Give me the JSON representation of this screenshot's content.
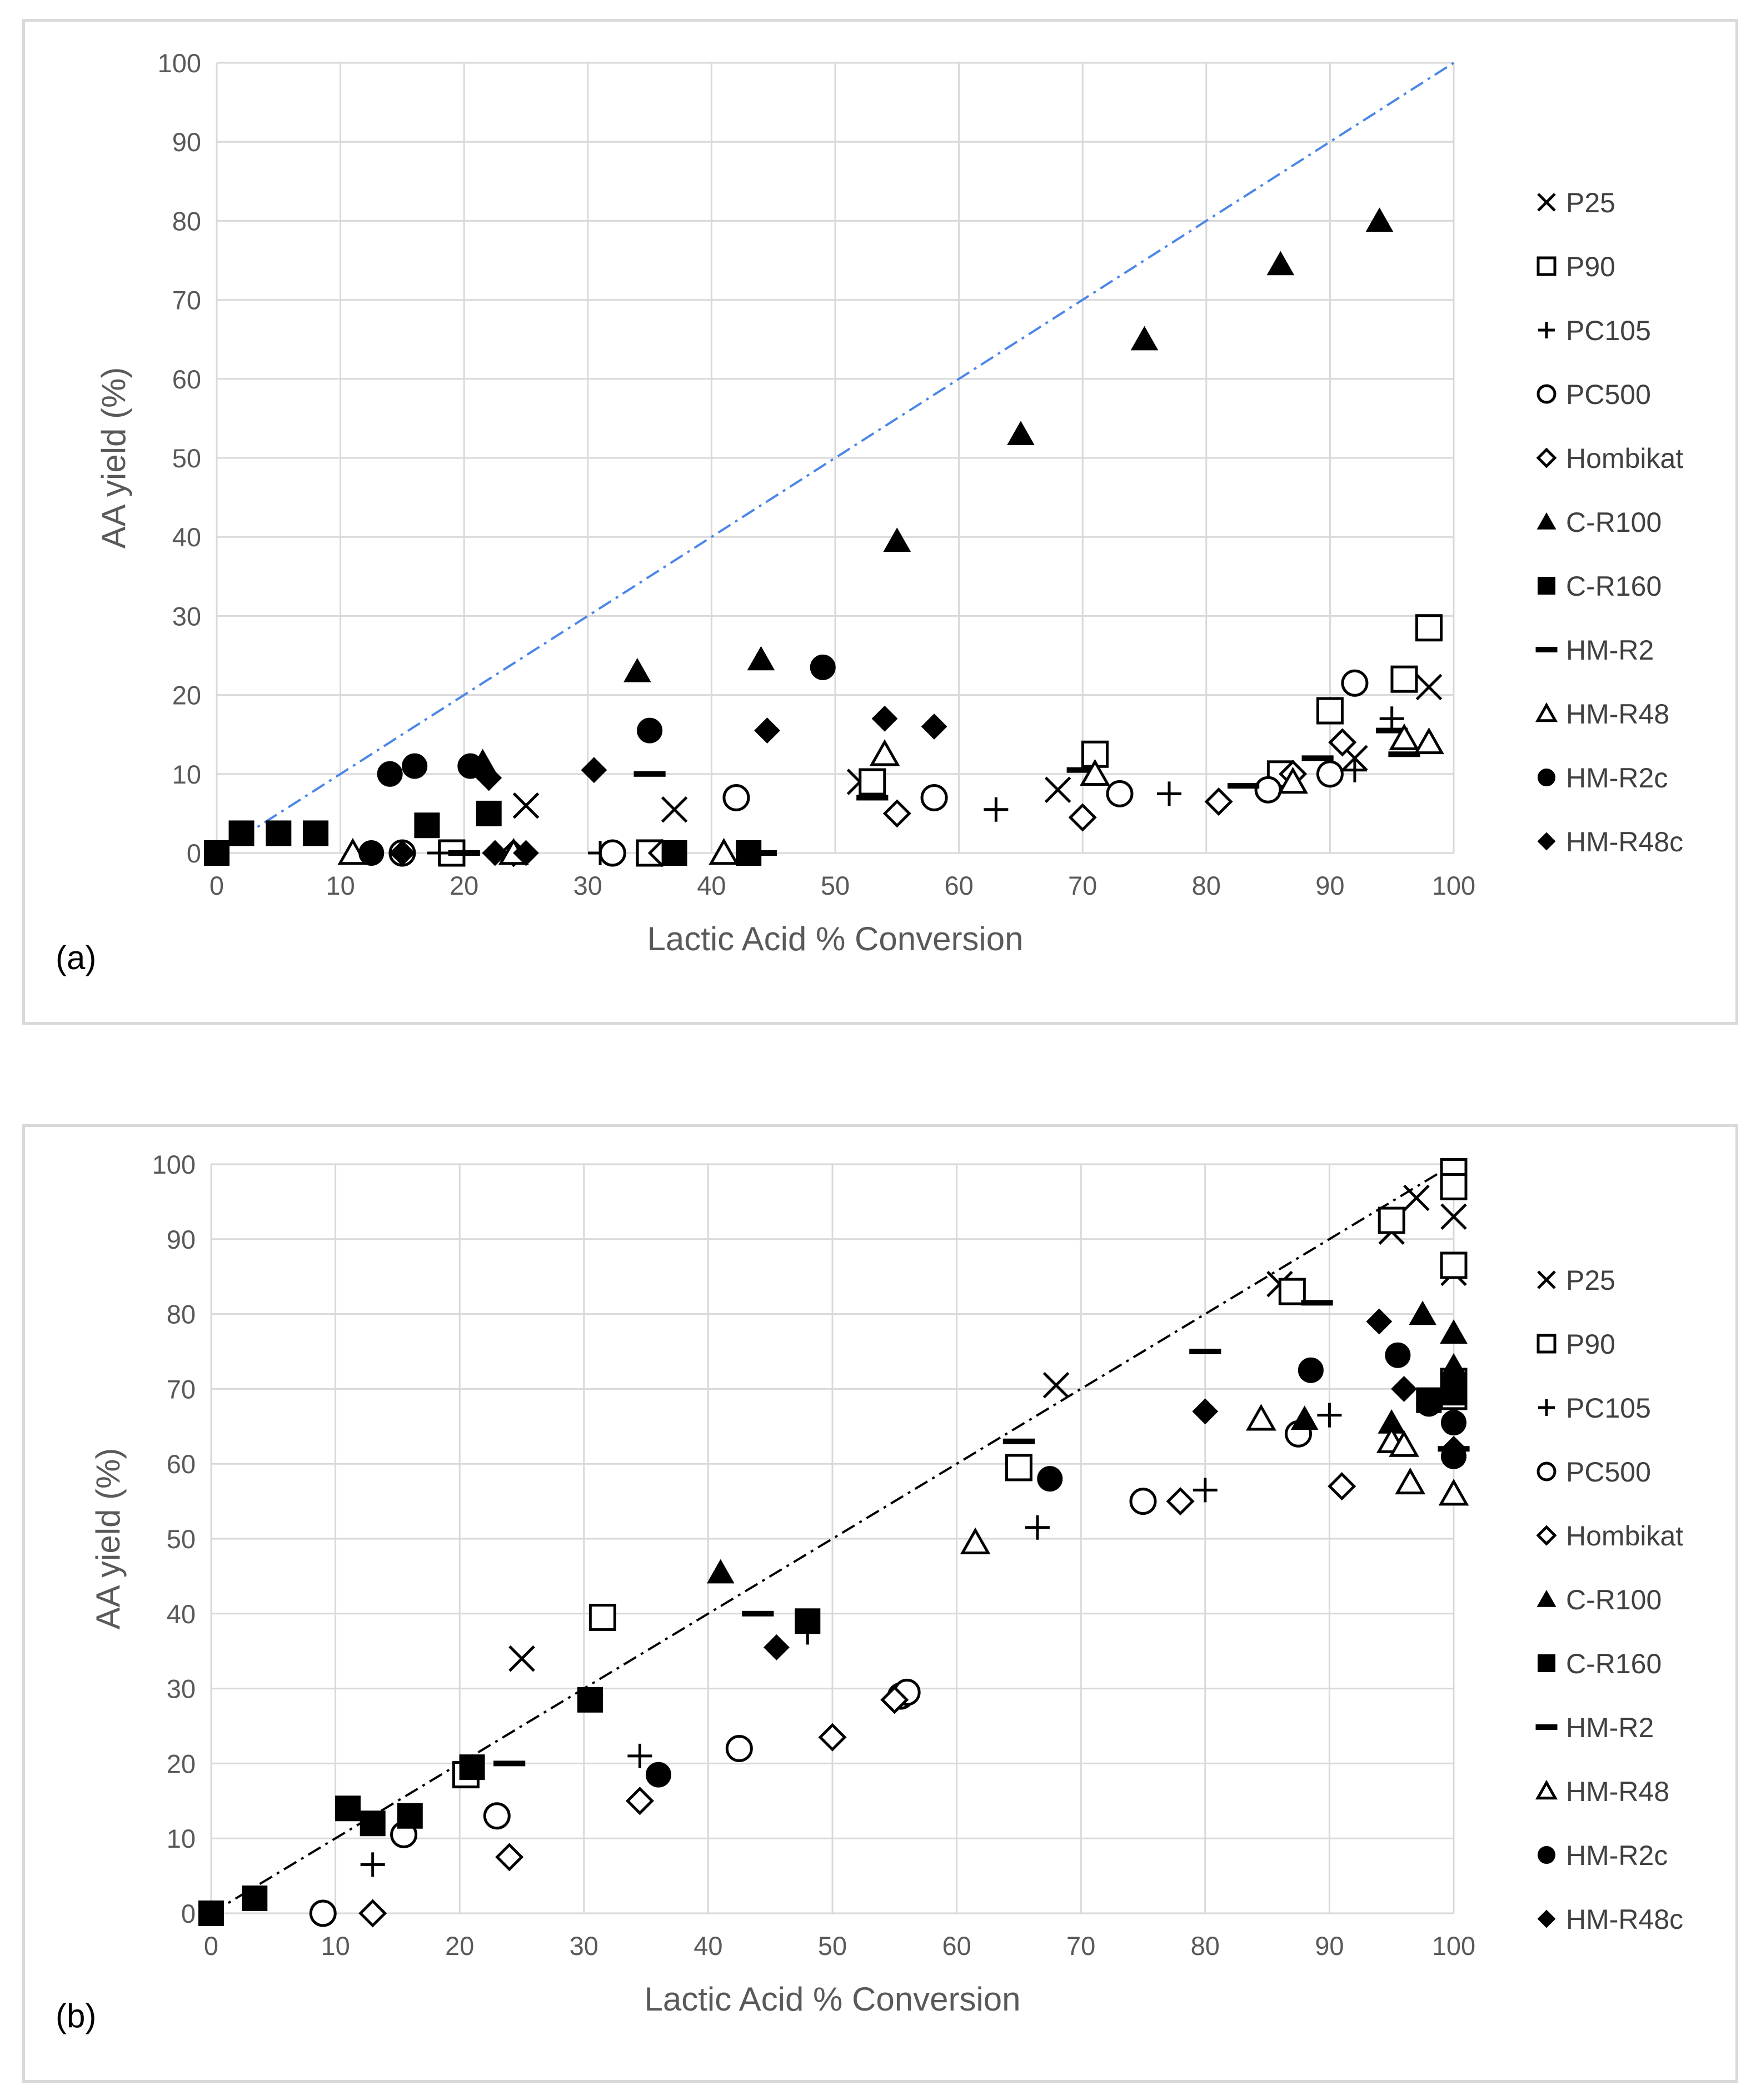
{
  "chart_data": [
    {
      "type": "scatter",
      "panel_label": "(a)",
      "title": "",
      "xlabel": "Lactic Acid % Conversion",
      "ylabel": "AA yield (%)",
      "xlim": [
        0,
        100
      ],
      "ylim": [
        0,
        100
      ],
      "xticks": [
        0,
        10,
        20,
        30,
        40,
        50,
        60,
        70,
        80,
        90,
        100
      ],
      "yticks": [
        0,
        10,
        20,
        30,
        40,
        50,
        60,
        70,
        80,
        90,
        100
      ],
      "grid": true,
      "legend_position": "right",
      "reference_line": {
        "points": [
          [
            0,
            0
          ],
          [
            100,
            100
          ]
        ],
        "color": "#4a86e8",
        "style": "dash-dot"
      },
      "series": [
        {
          "name": "P25",
          "marker": "x",
          "points": [
            [
              25,
              6
            ],
            [
              37,
              5.5
            ],
            [
              52,
              9
            ],
            [
              68,
              8
            ],
            [
              92,
              12
            ],
            [
              98,
              21
            ]
          ]
        },
        {
          "name": "P90",
          "marker": "square-open",
          "points": [
            [
              19,
              0
            ],
            [
              35,
              0
            ],
            [
              53,
              9
            ],
            [
              71,
              12.5
            ],
            [
              86,
              10
            ],
            [
              90,
              18
            ],
            [
              96,
              22
            ],
            [
              98,
              28.5
            ]
          ]
        },
        {
          "name": "PC105",
          "marker": "plus",
          "points": [
            [
              18,
              0
            ],
            [
              31,
              0
            ],
            [
              63,
              5.5
            ],
            [
              77,
              7.5
            ],
            [
              92,
              10.5
            ],
            [
              95,
              17
            ]
          ]
        },
        {
          "name": "PC500",
          "marker": "circle-open",
          "points": [
            [
              15,
              0
            ],
            [
              32,
              0
            ],
            [
              42,
              7
            ],
            [
              58,
              7
            ],
            [
              73,
              7.5
            ],
            [
              85,
              8
            ],
            [
              90,
              10
            ],
            [
              92,
              21.5
            ]
          ]
        },
        {
          "name": "Hombikat",
          "marker": "diamond-open",
          "points": [
            [
              24,
              0
            ],
            [
              36,
              0
            ],
            [
              55,
              5
            ],
            [
              70,
              4.5
            ],
            [
              81,
              6.5
            ],
            [
              87,
              10
            ],
            [
              91,
              14
            ]
          ]
        },
        {
          "name": "C-R100",
          "marker": "triangle-filled",
          "points": [
            [
              21.5,
              11.5
            ],
            [
              34,
              23
            ],
            [
              44,
              24.5
            ],
            [
              55,
              39.5
            ],
            [
              65,
              53
            ],
            [
              75,
              65
            ],
            [
              86,
              74.5
            ],
            [
              94,
              80
            ]
          ]
        },
        {
          "name": "C-R160",
          "marker": "square-filled",
          "points": [
            [
              0,
              0
            ],
            [
              2,
              2.5
            ],
            [
              5,
              2.5
            ],
            [
              8,
              2.5
            ],
            [
              17,
              3.5
            ],
            [
              22,
              5
            ],
            [
              37,
              0
            ],
            [
              43,
              0
            ]
          ]
        },
        {
          "name": "HM-R2",
          "marker": "dash",
          "points": [
            [
              20,
              0
            ],
            [
              44,
              0
            ],
            [
              35,
              10
            ],
            [
              53,
              7
            ],
            [
              70,
              10.5
            ],
            [
              83,
              8.5
            ],
            [
              89,
              12
            ],
            [
              95,
              15.5
            ],
            [
              96,
              12.5
            ]
          ]
        },
        {
          "name": "HM-R48",
          "marker": "triangle-open",
          "points": [
            [
              11,
              0
            ],
            [
              24,
              0
            ],
            [
              41,
              0
            ],
            [
              54,
              12.5
            ],
            [
              71,
              10
            ],
            [
              87,
              9
            ],
            [
              96,
              14.5
            ],
            [
              98,
              14
            ]
          ]
        },
        {
          "name": "HM-R2c",
          "marker": "circle-filled",
          "points": [
            [
              12.5,
              0
            ],
            [
              14,
              10
            ],
            [
              16,
              11
            ],
            [
              20.5,
              11
            ],
            [
              35,
              15.5
            ],
            [
              49,
              23.5
            ]
          ]
        },
        {
          "name": "HM-R48c",
          "marker": "diamond-filled",
          "points": [
            [
              15,
              0
            ],
            [
              22,
              9.5
            ],
            [
              22.5,
              0
            ],
            [
              25,
              0
            ],
            [
              30.5,
              10.5
            ],
            [
              44.5,
              15.5
            ],
            [
              54,
              17
            ],
            [
              58,
              16
            ]
          ]
        }
      ]
    },
    {
      "type": "scatter",
      "panel_label": "(b)",
      "title": "",
      "xlabel": "Lactic Acid % Conversion",
      "ylabel": "AA yield (%)",
      "xlim": [
        0,
        100
      ],
      "ylim": [
        0,
        100
      ],
      "xticks": [
        0,
        10,
        20,
        30,
        40,
        50,
        60,
        70,
        80,
        90,
        100
      ],
      "yticks": [
        0,
        10,
        20,
        30,
        40,
        50,
        60,
        70,
        80,
        90,
        100
      ],
      "grid": true,
      "legend_position": "right",
      "reference_line": {
        "points": [
          [
            0,
            0
          ],
          [
            100,
            100
          ]
        ],
        "color": "#000000",
        "style": "dash-dot"
      },
      "series": [
        {
          "name": "P25",
          "marker": "x",
          "points": [
            [
              25,
              34
            ],
            [
              68,
              70.5
            ],
            [
              86,
              84
            ],
            [
              95,
              91
            ],
            [
              97,
              95.5
            ],
            [
              100,
              93
            ],
            [
              100,
              85.5
            ]
          ]
        },
        {
          "name": "P90",
          "marker": "square-open",
          "points": [
            [
              20.5,
              18.5
            ],
            [
              31.5,
              39.5
            ],
            [
              65,
              59.5
            ],
            [
              87,
              83
            ],
            [
              95,
              92.5
            ],
            [
              100,
              99
            ],
            [
              100,
              97
            ],
            [
              100,
              86.5
            ],
            [
              100,
              71
            ],
            [
              100,
              69
            ]
          ]
        },
        {
          "name": "PC105",
          "marker": "plus",
          "points": [
            [
              13,
              6.5
            ],
            [
              34.5,
              21
            ],
            [
              48,
              37.5
            ],
            [
              66.5,
              51.5
            ],
            [
              80,
              56.5
            ],
            [
              90,
              66.5
            ],
            [
              100,
              71.5
            ]
          ]
        },
        {
          "name": "PC500",
          "marker": "circle-open",
          "points": [
            [
              9,
              0
            ],
            [
              15.5,
              10.5
            ],
            [
              23,
              13
            ],
            [
              42.5,
              22
            ],
            [
              55.5,
              29
            ],
            [
              56,
              29.5
            ],
            [
              75,
              55
            ],
            [
              87.5,
              64
            ]
          ]
        },
        {
          "name": "Hombikat",
          "marker": "diamond-open",
          "points": [
            [
              13,
              0
            ],
            [
              24,
              7.5
            ],
            [
              34.5,
              15
            ],
            [
              50,
              23.5
            ],
            [
              55,
              28.5
            ],
            [
              78,
              55
            ],
            [
              91,
              57
            ]
          ]
        },
        {
          "name": "C-R100",
          "marker": "triangle-filled",
          "points": [
            [
              41,
              45.5
            ],
            [
              88,
              66
            ],
            [
              95,
              65.5
            ],
            [
              97.5,
              80
            ],
            [
              100,
              77.5
            ],
            [
              100,
              73
            ]
          ]
        },
        {
          "name": "C-R160",
          "marker": "square-filled",
          "points": [
            [
              0,
              0
            ],
            [
              3.5,
              2
            ],
            [
              11,
              14
            ],
            [
              13,
              12
            ],
            [
              16,
              13
            ],
            [
              21,
              19.5
            ],
            [
              30.5,
              28.5
            ],
            [
              48,
              39
            ],
            [
              98,
              68.5
            ],
            [
              100,
              70
            ],
            [
              100,
              69.5
            ]
          ]
        },
        {
          "name": "HM-R2",
          "marker": "dash",
          "points": [
            [
              24,
              20
            ],
            [
              44,
              40
            ],
            [
              65,
              63
            ],
            [
              80,
              75
            ],
            [
              89,
              81.5
            ],
            [
              100,
              62
            ]
          ]
        },
        {
          "name": "HM-R48",
          "marker": "triangle-open",
          "points": [
            [
              61.5,
              49.5
            ],
            [
              84.5,
              66
            ],
            [
              95,
              63
            ],
            [
              96,
              62.5
            ],
            [
              96.5,
              57.5
            ],
            [
              100,
              56
            ]
          ]
        },
        {
          "name": "HM-R2c",
          "marker": "circle-filled",
          "points": [
            [
              36,
              18.5
            ],
            [
              67.5,
              58
            ],
            [
              88.5,
              72.5
            ],
            [
              95.5,
              74.5
            ],
            [
              98,
              68
            ],
            [
              100,
              65.5
            ],
            [
              100,
              61
            ]
          ]
        },
        {
          "name": "HM-R48c",
          "marker": "diamond-filled",
          "points": [
            [
              45.5,
              35.5
            ],
            [
              80,
              67
            ],
            [
              94,
              79
            ],
            [
              96,
              70
            ],
            [
              100,
              62
            ]
          ]
        }
      ]
    }
  ]
}
